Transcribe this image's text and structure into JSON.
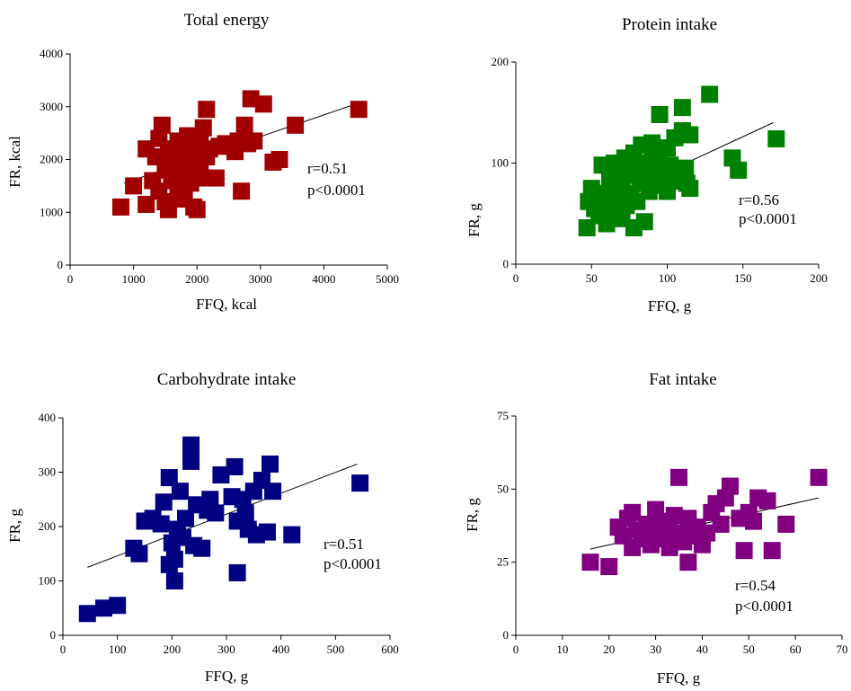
{
  "figure": {
    "panels": [
      {
        "title": "Total energy",
        "xlabel": "FFQ, kcal",
        "ylabel": "FR, kcal",
        "r": "r=0.51",
        "p": "p<0.0001"
      },
      {
        "title": "Protein intake",
        "xlabel": "FFQ, g",
        "ylabel": "FR, g",
        "r": "r=0.56",
        "p": "p<0.0001"
      },
      {
        "title": "Carbohydrate intake",
        "xlabel": "FFQ, g",
        "ylabel": "FR, g",
        "r": "r=0.51",
        "p": "p<0.0001"
      },
      {
        "title": "Fat intake",
        "xlabel": "FFQ, g",
        "ylabel": "FR, g",
        "r": "r=0.54",
        "p": "p<0.0001"
      }
    ]
  },
  "chart_data": [
    {
      "type": "scatter",
      "title": "Total energy",
      "xlabel": "FFQ, kcal",
      "ylabel": "FR, kcal",
      "xlim": [
        0,
        5000
      ],
      "ylim": [
        0,
        4000
      ],
      "xticks": [
        0,
        1000,
        2000,
        3000,
        4000,
        5000
      ],
      "yticks": [
        0,
        1000,
        2000,
        3000,
        4000
      ],
      "color": "#a00000",
      "trendline": [
        [
          850,
          1550
        ],
        [
          4500,
          3050
        ]
      ],
      "annotation": [
        "r=0.51",
        "p<0.0001"
      ],
      "points": [
        [
          800,
          1100
        ],
        [
          1000,
          1500
        ],
        [
          1200,
          1150
        ],
        [
          1200,
          2200
        ],
        [
          1300,
          1600
        ],
        [
          1350,
          2050
        ],
        [
          1400,
          1400
        ],
        [
          1400,
          2400
        ],
        [
          1450,
          2650
        ],
        [
          1500,
          1800
        ],
        [
          1500,
          1200
        ],
        [
          1550,
          1050
        ],
        [
          1550,
          2200
        ],
        [
          1600,
          1600
        ],
        [
          1600,
          2000
        ],
        [
          1650,
          1900
        ],
        [
          1700,
          1300
        ],
        [
          1700,
          2350
        ],
        [
          1750,
          1700
        ],
        [
          1750,
          1450
        ],
        [
          1800,
          1850
        ],
        [
          1800,
          2100
        ],
        [
          1800,
          1250
        ],
        [
          1850,
          2000
        ],
        [
          1850,
          2450
        ],
        [
          1900,
          1550
        ],
        [
          1900,
          1750
        ],
        [
          1950,
          2300
        ],
        [
          1950,
          1100
        ],
        [
          1950,
          1950
        ],
        [
          2000,
          2150
        ],
        [
          2000,
          1050
        ],
        [
          2050,
          1850
        ],
        [
          2050,
          2400
        ],
        [
          2100,
          2600
        ],
        [
          2100,
          1650
        ],
        [
          2150,
          2050
        ],
        [
          2150,
          2950
        ],
        [
          2200,
          2200
        ],
        [
          2300,
          1650
        ],
        [
          2350,
          2250
        ],
        [
          2450,
          2300
        ],
        [
          2600,
          2150
        ],
        [
          2650,
          2350
        ],
        [
          2700,
          1400
        ],
        [
          2750,
          2650
        ],
        [
          2800,
          2300
        ],
        [
          2850,
          3150
        ],
        [
          2900,
          2350
        ],
        [
          3050,
          3050
        ],
        [
          3200,
          1950
        ],
        [
          3300,
          2000
        ],
        [
          3550,
          2650
        ],
        [
          4550,
          2950
        ]
      ]
    },
    {
      "type": "scatter",
      "title": "Protein intake",
      "xlabel": "FFQ, g",
      "ylabel": "FR, g",
      "xlim": [
        0,
        200
      ],
      "ylim": [
        0,
        200
      ],
      "xticks": [
        0,
        50,
        100,
        150,
        200
      ],
      "yticks": [
        0,
        100,
        200
      ],
      "color": "#008000",
      "trendline": [
        [
          52,
          58
        ],
        [
          170,
          140
        ]
      ],
      "annotation": [
        "r=0.56",
        "p<0.0001"
      ],
      "points": [
        [
          47,
          36
        ],
        [
          48,
          62
        ],
        [
          50,
          75
        ],
        [
          52,
          55
        ],
        [
          54,
          68
        ],
        [
          55,
          48
        ],
        [
          57,
          98
        ],
        [
          58,
          70
        ],
        [
          60,
          60
        ],
        [
          60,
          40
        ],
        [
          62,
          85
        ],
        [
          63,
          78
        ],
        [
          65,
          100
        ],
        [
          65,
          52
        ],
        [
          67,
          65
        ],
        [
          68,
          92
        ],
        [
          70,
          75
        ],
        [
          70,
          45
        ],
        [
          72,
          105
        ],
        [
          73,
          58
        ],
        [
          75,
          88
        ],
        [
          76,
          70
        ],
        [
          78,
          36
        ],
        [
          78,
          110
        ],
        [
          80,
          95
        ],
        [
          80,
          62
        ],
        [
          82,
          80
        ],
        [
          83,
          118
        ],
        [
          85,
          42
        ],
        [
          85,
          100
        ],
        [
          87,
          88
        ],
        [
          88,
          72
        ],
        [
          90,
          120
        ],
        [
          90,
          105
        ],
        [
          92,
          80
        ],
        [
          93,
          95
        ],
        [
          95,
          148
        ],
        [
          95,
          110
        ],
        [
          97,
          78
        ],
        [
          98,
          88
        ],
        [
          100,
          115
        ],
        [
          100,
          72
        ],
        [
          102,
          98
        ],
        [
          105,
          125
        ],
        [
          105,
          82
        ],
        [
          107,
          90
        ],
        [
          110,
          155
        ],
        [
          110,
          132
        ],
        [
          112,
          95
        ],
        [
          113,
          80
        ],
        [
          115,
          128
        ],
        [
          115,
          75
        ],
        [
          128,
          168
        ],
        [
          143,
          105
        ],
        [
          147,
          93
        ],
        [
          172,
          124
        ]
      ]
    },
    {
      "type": "scatter",
      "title": "Carbohydrate intake",
      "xlabel": "FFQ, g",
      "ylabel": "FR, g",
      "xlim": [
        0,
        600
      ],
      "ylim": [
        0,
        400
      ],
      "xticks": [
        0,
        100,
        200,
        300,
        400,
        500,
        600
      ],
      "yticks": [
        0,
        100,
        200,
        300,
        400
      ],
      "color": "#000080",
      "trendline": [
        [
          45,
          125
        ],
        [
          540,
          315
        ]
      ],
      "annotation": [
        "r=0.51",
        "p<0.0001"
      ],
      "points": [
        [
          45,
          40
        ],
        [
          75,
          50
        ],
        [
          100,
          55
        ],
        [
          130,
          160
        ],
        [
          140,
          150
        ],
        [
          150,
          210
        ],
        [
          165,
          215
        ],
        [
          180,
          205
        ],
        [
          185,
          245
        ],
        [
          195,
          290
        ],
        [
          195,
          130
        ],
        [
          200,
          170
        ],
        [
          205,
          100
        ],
        [
          205,
          140
        ],
        [
          210,
          195
        ],
        [
          215,
          265
        ],
        [
          220,
          180
        ],
        [
          225,
          215
        ],
        [
          235,
          350
        ],
        [
          235,
          320
        ],
        [
          240,
          165
        ],
        [
          245,
          240
        ],
        [
          255,
          160
        ],
        [
          265,
          230
        ],
        [
          270,
          250
        ],
        [
          280,
          225
        ],
        [
          290,
          295
        ],
        [
          310,
          255
        ],
        [
          315,
          310
        ],
        [
          320,
          115
        ],
        [
          320,
          210
        ],
        [
          330,
          250
        ],
        [
          335,
          225
        ],
        [
          340,
          195
        ],
        [
          350,
          265
        ],
        [
          355,
          185
        ],
        [
          365,
          285
        ],
        [
          375,
          190
        ],
        [
          380,
          315
        ],
        [
          385,
          265
        ],
        [
          420,
          185
        ],
        [
          545,
          280
        ]
      ]
    },
    {
      "type": "scatter",
      "title": "Fat intake",
      "xlabel": "FFQ, g",
      "ylabel": "FR, g",
      "xlim": [
        0,
        70
      ],
      "ylim": [
        0,
        75
      ],
      "xticks": [
        0,
        10,
        20,
        30,
        40,
        50,
        60,
        70
      ],
      "yticks": [
        0,
        25,
        50,
        75
      ],
      "color": "#800080",
      "trendline": [
        [
          16,
          29.5
        ],
        [
          65,
          47
        ]
      ],
      "annotation": [
        "r=0.54",
        "p<0.0001"
      ],
      "points": [
        [
          16,
          25
        ],
        [
          20,
          23.5
        ],
        [
          22,
          37
        ],
        [
          23,
          34
        ],
        [
          24,
          40
        ],
        [
          25,
          42
        ],
        [
          25,
          30
        ],
        [
          26,
          36
        ],
        [
          27,
          33
        ],
        [
          28,
          38
        ],
        [
          29,
          31
        ],
        [
          30,
          35
        ],
        [
          30,
          43
        ],
        [
          31,
          39
        ],
        [
          32,
          33
        ],
        [
          33,
          30
        ],
        [
          33,
          37
        ],
        [
          34,
          41
        ],
        [
          35,
          54
        ],
        [
          35,
          35
        ],
        [
          36,
          32
        ],
        [
          37,
          25
        ],
        [
          37,
          40
        ],
        [
          38,
          34
        ],
        [
          39,
          37
        ],
        [
          40,
          31
        ],
        [
          41,
          35
        ],
        [
          42,
          42
        ],
        [
          43,
          45
        ],
        [
          44,
          38
        ],
        [
          45,
          47
        ],
        [
          46,
          51
        ],
        [
          48,
          40
        ],
        [
          49,
          29
        ],
        [
          50,
          42
        ],
        [
          51,
          39
        ],
        [
          52,
          47
        ],
        [
          54,
          46
        ],
        [
          55,
          29
        ],
        [
          58,
          38
        ],
        [
          65,
          54
        ]
      ]
    }
  ]
}
